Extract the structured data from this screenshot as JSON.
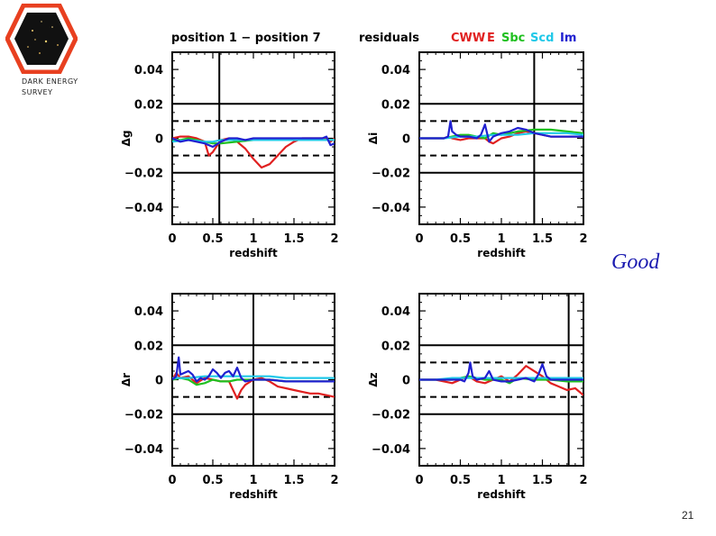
{
  "logo": {
    "line1": "DARK ENERGY",
    "line2": "SURVEY"
  },
  "header": {
    "title": "position 1 − position 7",
    "residuals": "residuals",
    "legend": [
      {
        "name": "CWW",
        "color": "#e02020"
      },
      {
        "name": "E",
        "color": "#e02020"
      },
      {
        "name": "Sbc",
        "color": "#20c020"
      },
      {
        "name": "Scd",
        "color": "#20c8e8"
      },
      {
        "name": "Im",
        "color": "#2020d0"
      }
    ]
  },
  "annotation": "Good",
  "page_number": "21",
  "chart_data": [
    {
      "type": "line",
      "id": "g",
      "ylabel": "Δg",
      "xlabel": "redshift",
      "xlim": [
        0,
        2
      ],
      "ylim": [
        -0.05,
        0.05
      ],
      "xticks": [
        "0",
        "0.5",
        "1",
        "1.5",
        "2"
      ],
      "yticks": [
        "0.04",
        "0.02",
        "0",
        "−0.02",
        "−0.04"
      ],
      "hlines_solid": [
        0.02,
        -0.02
      ],
      "hlines_dashed": [
        0.01,
        -0.01
      ],
      "vline": 0.58,
      "series": [
        {
          "name": "E",
          "color": "#e02020",
          "x": [
            0,
            0.1,
            0.2,
            0.3,
            0.4,
            0.45,
            0.5,
            0.6,
            0.7,
            0.8,
            0.9,
            1.0,
            1.1,
            1.2,
            1.3,
            1.4,
            1.5,
            1.6,
            1.7,
            1.8,
            1.9,
            1.95,
            2.0
          ],
          "y": [
            0,
            0.001,
            0.001,
            0,
            -0.002,
            -0.01,
            -0.008,
            -0.001,
            0,
            -0.002,
            -0.006,
            -0.012,
            -0.017,
            -0.015,
            -0.01,
            -0.005,
            -0.002,
            0,
            0,
            0,
            0,
            -0.002,
            0
          ]
        },
        {
          "name": "Sbc",
          "color": "#20c020",
          "x": [
            0,
            0.1,
            0.2,
            0.3,
            0.4,
            0.5,
            0.6,
            0.8,
            1.0,
            1.5,
            2.0
          ],
          "y": [
            -0.001,
            -0.001,
            0,
            -0.001,
            -0.002,
            -0.003,
            -0.003,
            -0.002,
            -0.001,
            -0.001,
            -0.001
          ]
        },
        {
          "name": "Scd",
          "color": "#20c8e8",
          "x": [
            0,
            0.2,
            0.4,
            0.5,
            0.6,
            0.8,
            1.0,
            1.2,
            1.5,
            1.8,
            2.0
          ],
          "y": [
            -0.002,
            -0.001,
            -0.002,
            -0.002,
            -0.001,
            -0.001,
            -0.001,
            -0.001,
            -0.001,
            -0.001,
            -0.001
          ]
        },
        {
          "name": "Im",
          "color": "#2020d0",
          "x": [
            0,
            0.1,
            0.2,
            0.3,
            0.4,
            0.5,
            0.6,
            0.7,
            0.8,
            0.9,
            1.0,
            1.2,
            1.4,
            1.6,
            1.8,
            1.85,
            1.9,
            1.95,
            2.0
          ],
          "y": [
            0,
            -0.002,
            -0.001,
            -0.002,
            -0.003,
            -0.005,
            -0.002,
            0,
            0,
            -0.001,
            0,
            0,
            0,
            0,
            0,
            0,
            0.001,
            -0.004,
            -0.003
          ]
        }
      ]
    },
    {
      "type": "line",
      "id": "i",
      "ylabel": "Δi",
      "xlabel": "redshift",
      "xlim": [
        0,
        2
      ],
      "ylim": [
        -0.05,
        0.05
      ],
      "xticks": [
        "0",
        "0.5",
        "1",
        "1.5",
        "2"
      ],
      "yticks": [
        "0.04",
        "0.02",
        "0",
        "−0.02",
        "−0.04"
      ],
      "hlines_solid": [
        0.02,
        -0.02
      ],
      "hlines_dashed": [
        0.01,
        -0.01
      ],
      "vline": 1.4,
      "series": [
        {
          "name": "E",
          "color": "#e02020",
          "x": [
            0,
            0.2,
            0.3,
            0.35,
            0.4,
            0.5,
            0.6,
            0.7,
            0.8,
            0.85,
            0.9,
            1.0,
            1.1,
            1.2,
            1.3,
            1.4,
            1.5,
            1.6,
            1.8,
            2.0
          ],
          "y": [
            0,
            0,
            0,
            0.001,
            0,
            -0.001,
            0,
            0,
            0,
            -0.002,
            -0.003,
            0,
            0.001,
            0.003,
            0.004,
            0.003,
            0.002,
            0.001,
            0.001,
            0.001
          ]
        },
        {
          "name": "Sbc",
          "color": "#20c020",
          "x": [
            0,
            0.3,
            0.4,
            0.5,
            0.6,
            0.7,
            0.8,
            0.9,
            1.0,
            1.2,
            1.4,
            1.6,
            1.8,
            2.0
          ],
          "y": [
            0,
            0,
            0.001,
            0.002,
            0.002,
            0.001,
            0,
            0.003,
            0.002,
            0.004,
            0.005,
            0.005,
            0.004,
            0.003
          ]
        },
        {
          "name": "Scd",
          "color": "#20c8e8",
          "x": [
            0,
            0.3,
            0.5,
            0.7,
            0.9,
            1.0,
            1.2,
            1.4,
            1.6,
            1.8,
            2.0
          ],
          "y": [
            0,
            0,
            0.001,
            0.001,
            0.002,
            0.002,
            0.002,
            0.003,
            0.003,
            0.003,
            0.002
          ]
        },
        {
          "name": "Im",
          "color": "#2020d0",
          "x": [
            0,
            0.1,
            0.2,
            0.3,
            0.35,
            0.38,
            0.4,
            0.45,
            0.5,
            0.6,
            0.7,
            0.75,
            0.8,
            0.85,
            0.9,
            1.0,
            1.1,
            1.2,
            1.3,
            1.4,
            1.5,
            1.6,
            1.8,
            2.0
          ],
          "y": [
            0,
            0,
            0,
            0,
            0.001,
            0.01,
            0.004,
            0.002,
            0.001,
            0.001,
            0,
            0.002,
            0.008,
            -0.002,
            0.001,
            0.003,
            0.004,
            0.006,
            0.005,
            0.003,
            0.002,
            0.001,
            0.001,
            0.001
          ]
        }
      ]
    },
    {
      "type": "line",
      "id": "r",
      "ylabel": "Δr",
      "xlabel": "redshift",
      "xlim": [
        0,
        2
      ],
      "ylim": [
        -0.05,
        0.05
      ],
      "xticks": [
        "0",
        "0.5",
        "1",
        "1.5",
        "2"
      ],
      "yticks": [
        "0.04",
        "0.02",
        "0",
        "−0.02",
        "−0.04"
      ],
      "hlines_solid": [
        0.02,
        -0.02
      ],
      "hlines_dashed": [
        0.01,
        -0.01
      ],
      "vline": 1.0,
      "series": [
        {
          "name": "E",
          "color": "#e02020",
          "x": [
            0,
            0.05,
            0.1,
            0.2,
            0.3,
            0.4,
            0.5,
            0.6,
            0.7,
            0.75,
            0.8,
            0.85,
            0.9,
            1.0,
            1.1,
            1.2,
            1.3,
            1.4,
            1.5,
            1.6,
            1.7,
            1.8,
            1.9,
            2.0
          ],
          "y": [
            0,
            0.004,
            0.001,
            0.002,
            -0.002,
            0.001,
            0,
            -0.001,
            -0.001,
            -0.006,
            -0.011,
            -0.006,
            -0.003,
            0,
            0.001,
            -0.001,
            -0.004,
            -0.005,
            -0.006,
            -0.007,
            -0.008,
            -0.008,
            -0.009,
            -0.01
          ]
        },
        {
          "name": "Sbc",
          "color": "#20c020",
          "x": [
            0,
            0.1,
            0.2,
            0.3,
            0.4,
            0.5,
            0.6,
            0.7,
            0.8,
            0.9,
            1.0,
            1.2,
            1.4,
            1.6,
            1.8,
            2.0
          ],
          "y": [
            0,
            0.001,
            0,
            -0.003,
            -0.002,
            0,
            -0.001,
            -0.001,
            0,
            0,
            0,
            0,
            -0.001,
            -0.001,
            -0.001,
            -0.001
          ]
        },
        {
          "name": "Scd",
          "color": "#20c8e8",
          "x": [
            0,
            0.2,
            0.4,
            0.5,
            0.6,
            0.8,
            1.0,
            1.2,
            1.4,
            1.6,
            1.8,
            2.0
          ],
          "y": [
            0.001,
            0.001,
            0.002,
            0.002,
            0.002,
            0.002,
            0.002,
            0.002,
            0.001,
            0.001,
            0.001,
            0.001
          ]
        },
        {
          "name": "Im",
          "color": "#2020d0",
          "x": [
            0,
            0.05,
            0.08,
            0.1,
            0.15,
            0.2,
            0.25,
            0.3,
            0.35,
            0.4,
            0.45,
            0.5,
            0.55,
            0.6,
            0.65,
            0.7,
            0.75,
            0.8,
            0.85,
            0.9,
            1.0,
            1.2,
            1.4,
            1.6,
            1.8,
            2.0
          ],
          "y": [
            0,
            0.002,
            0.013,
            0.003,
            0.004,
            0.005,
            0.003,
            -0.001,
            0.001,
            0,
            0.002,
            0.006,
            0.004,
            0.001,
            0.004,
            0.005,
            0.002,
            0.007,
            0.001,
            -0.001,
            0,
            0,
            -0.001,
            -0.001,
            -0.001,
            -0.001
          ]
        }
      ]
    },
    {
      "type": "line",
      "id": "z",
      "ylabel": "Δz",
      "xlabel": "redshift",
      "xlim": [
        0,
        2
      ],
      "ylim": [
        -0.05,
        0.05
      ],
      "xticks": [
        "0",
        "0.5",
        "1",
        "1.5",
        "2"
      ],
      "yticks": [
        "0.04",
        "0.02",
        "0",
        "−0.02",
        "−0.04"
      ],
      "hlines_solid": [
        0.02,
        -0.02
      ],
      "hlines_dashed": [
        0.01,
        -0.01
      ],
      "vline": 1.82,
      "series": [
        {
          "name": "E",
          "color": "#e02020",
          "x": [
            0,
            0.2,
            0.4,
            0.5,
            0.6,
            0.7,
            0.8,
            0.9,
            1.0,
            1.1,
            1.2,
            1.3,
            1.4,
            1.5,
            1.6,
            1.7,
            1.8,
            1.9,
            2.0
          ],
          "y": [
            0,
            0,
            -0.002,
            0,
            0.002,
            -0.001,
            -0.002,
            0,
            0.002,
            -0.001,
            0.003,
            0.008,
            0.005,
            0.002,
            -0.002,
            -0.004,
            -0.006,
            -0.005,
            -0.009
          ]
        },
        {
          "name": "Sbc",
          "color": "#20c020",
          "x": [
            0,
            0.2,
            0.4,
            0.5,
            0.6,
            0.8,
            1.0,
            1.1,
            1.2,
            1.4,
            1.6,
            1.8,
            2.0
          ],
          "y": [
            0,
            0,
            0,
            0.001,
            0.002,
            0,
            0,
            -0.002,
            0.001,
            0,
            0,
            -0.001,
            -0.001
          ]
        },
        {
          "name": "Scd",
          "color": "#20c8e8",
          "x": [
            0,
            0.2,
            0.4,
            0.6,
            0.8,
            1.0,
            1.2,
            1.4,
            1.6,
            1.8,
            2.0
          ],
          "y": [
            0,
            0,
            0.001,
            0.001,
            0.001,
            0.001,
            0.001,
            0.001,
            0.001,
            0.001,
            0.001
          ]
        },
        {
          "name": "Im",
          "color": "#2020d0",
          "x": [
            0,
            0.2,
            0.4,
            0.5,
            0.55,
            0.6,
            0.62,
            0.65,
            0.7,
            0.8,
            0.85,
            0.9,
            1.0,
            1.1,
            1.2,
            1.3,
            1.4,
            1.45,
            1.5,
            1.55,
            1.6,
            1.8,
            2.0
          ],
          "y": [
            0,
            0,
            0,
            0,
            -0.001,
            0.004,
            0.01,
            0.002,
            0,
            0.001,
            0.005,
            0,
            -0.001,
            -0.001,
            0,
            0.001,
            -0.001,
            0.003,
            0.009,
            0.002,
            0,
            0,
            0
          ]
        }
      ]
    }
  ]
}
